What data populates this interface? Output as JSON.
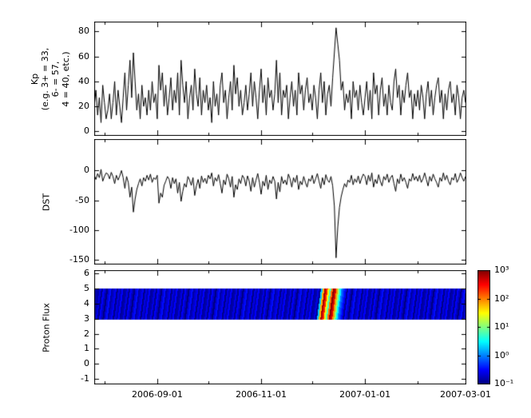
{
  "figure": {
    "background": "#ffffff"
  },
  "x_axis": {
    "tick_labels": [
      "2006-09-01",
      "2006-11-01",
      "2007-01-01",
      "2007-03-01"
    ],
    "tick_days": [
      37,
      98,
      159,
      218
    ],
    "minor_tick_days": [
      6,
      67,
      128,
      190
    ],
    "range_days": [
      0,
      218
    ],
    "x_start_date": "2006-07-26",
    "x_step_days": 1
  },
  "chart_data": [
    {
      "type": "line",
      "name": "kp",
      "ylabel_lines": [
        "Kp",
        "(e.g. 3+ = 33,",
        "6- = 57,",
        "4 = 40, etc.)"
      ],
      "yticks": [
        80,
        60,
        40,
        20,
        0
      ],
      "ylim": [
        -3,
        88
      ],
      "line_color": "#000000",
      "values": [
        20,
        33,
        13,
        27,
        7,
        37,
        23,
        10,
        17,
        30,
        10,
        23,
        40,
        13,
        33,
        20,
        7,
        27,
        47,
        17,
        37,
        57,
        27,
        63,
        40,
        17,
        30,
        10,
        37,
        20,
        27,
        13,
        33,
        17,
        40,
        23,
        30,
        10,
        53,
        33,
        47,
        20,
        37,
        13,
        27,
        43,
        17,
        33,
        23,
        47,
        13,
        57,
        37,
        23,
        40,
        10,
        27,
        37,
        17,
        50,
        30,
        20,
        43,
        13,
        33,
        23,
        37,
        17,
        27,
        7,
        40,
        20,
        30,
        13,
        37,
        47,
        23,
        33,
        10,
        27,
        40,
        17,
        53,
        30,
        43,
        20,
        33,
        13,
        23,
        37,
        17,
        30,
        47,
        20,
        40,
        27,
        10,
        33,
        50,
        23,
        37,
        13,
        43,
        27,
        33,
        17,
        30,
        57,
        23,
        47,
        13,
        33,
        27,
        37,
        10,
        27,
        40,
        20,
        33,
        13,
        47,
        30,
        37,
        17,
        33,
        43,
        23,
        30,
        17,
        37,
        27,
        10,
        33,
        47,
        23,
        40,
        13,
        30,
        37,
        20,
        43,
        63,
        83,
        70,
        57,
        33,
        40,
        17,
        30,
        23,
        33,
        10,
        40,
        27,
        33,
        17,
        37,
        23,
        13,
        27,
        40,
        17,
        33,
        10,
        47,
        30,
        37,
        13,
        33,
        43,
        20,
        30,
        13,
        37,
        23,
        17,
        40,
        50,
        27,
        37,
        13,
        33,
        23,
        37,
        47,
        27,
        33,
        10,
        30,
        20,
        33,
        17,
        37,
        27,
        10,
        30,
        40,
        20,
        33,
        13,
        27,
        37,
        43,
        23,
        33,
        10,
        30,
        17,
        33,
        40,
        23,
        30,
        13,
        37,
        27,
        10,
        27,
        33,
        23
      ]
    },
    {
      "type": "line",
      "name": "dst",
      "ylabel": "DST",
      "yticks": [
        0,
        -50,
        -100,
        -150
      ],
      "ylim": [
        -157,
        53
      ],
      "line_color": "#000000",
      "values": [
        -8,
        -15,
        -5,
        -12,
        2,
        -18,
        -10,
        -4,
        -6,
        -14,
        -3,
        -10,
        -22,
        -8,
        -16,
        -9,
        0,
        -12,
        -30,
        -10,
        -20,
        -45,
        -28,
        -70,
        -48,
        -32,
        -22,
        -14,
        -26,
        -12,
        -18,
        -8,
        -16,
        -6,
        -20,
        -12,
        -15,
        -8,
        -55,
        -38,
        -45,
        -25,
        -18,
        -10,
        -15,
        -30,
        -12,
        -22,
        -14,
        -38,
        -20,
        -52,
        -35,
        -22,
        -28,
        -10,
        -16,
        -25,
        -12,
        -42,
        -26,
        -15,
        -30,
        -9,
        -20,
        -13,
        -22,
        -8,
        -14,
        -4,
        -26,
        -12,
        -18,
        -7,
        -22,
        -38,
        -16,
        -24,
        -6,
        -14,
        -28,
        -10,
        -45,
        -24,
        -32,
        -14,
        -22,
        -8,
        -13,
        -26,
        -9,
        -18,
        -35,
        -12,
        -28,
        -16,
        -5,
        -20,
        -40,
        -18,
        -26,
        -8,
        -32,
        -16,
        -22,
        -10,
        -18,
        -48,
        -20,
        -36,
        -10,
        -22,
        -16,
        -24,
        -6,
        -14,
        -28,
        -12,
        -20,
        -8,
        -32,
        -18,
        -24,
        -10,
        -20,
        -28,
        -14,
        -18,
        -8,
        -22,
        -14,
        -5,
        -18,
        -30,
        -12,
        -24,
        -7,
        -16,
        -20,
        -10,
        -26,
        -60,
        -147,
        -95,
        -62,
        -44,
        -32,
        -22,
        -28,
        -16,
        -20,
        -8,
        -24,
        -14,
        -20,
        -9,
        -22,
        -13,
        -6,
        -10,
        -24,
        -8,
        -18,
        -4,
        -28,
        -15,
        -22,
        -7,
        -18,
        -26,
        -10,
        -16,
        -6,
        -20,
        -12,
        -8,
        -22,
        -35,
        -14,
        -22,
        -6,
        -18,
        -12,
        -20,
        -30,
        -14,
        -18,
        -5,
        -16,
        -10,
        -18,
        -8,
        -20,
        -14,
        -4,
        -15,
        -26,
        -10,
        -18,
        -6,
        -14,
        -20,
        -28,
        -12,
        -18,
        -4,
        -16,
        -8,
        -18,
        -24,
        -12,
        -16,
        -5,
        -20,
        -14,
        -4,
        -12,
        -18,
        -10
      ]
    },
    {
      "type": "heatmap",
      "name": "proton-flux",
      "ylabel": "Proton Flux",
      "yticks": [
        6,
        5,
        4,
        3,
        2,
        1,
        0,
        -1
      ],
      "ylim": [
        -1.3,
        6.2
      ],
      "band_y": [
        3,
        5
      ],
      "scale": "log",
      "clim": [
        0.1,
        1000
      ],
      "colorbar_tick_labels": [
        "10³",
        "10²",
        "10¹",
        "10⁰",
        "10⁻¹"
      ],
      "colorbar_tick_log_values": [
        3,
        2,
        1,
        0,
        -1
      ],
      "base_pattern": [
        0.15,
        0.25,
        0.12,
        0.3,
        0.18,
        0.1,
        0.22,
        0.35,
        0.14,
        0.2,
        0.28,
        0.11,
        0.24,
        0.16,
        0.32,
        0.13
      ],
      "event": {
        "start_day": 131,
        "values": [
          2,
          60,
          700,
          250,
          35,
          6,
          120,
          900,
          450,
          80,
          12,
          3,
          0.9,
          0.5,
          0.3
        ]
      }
    }
  ]
}
